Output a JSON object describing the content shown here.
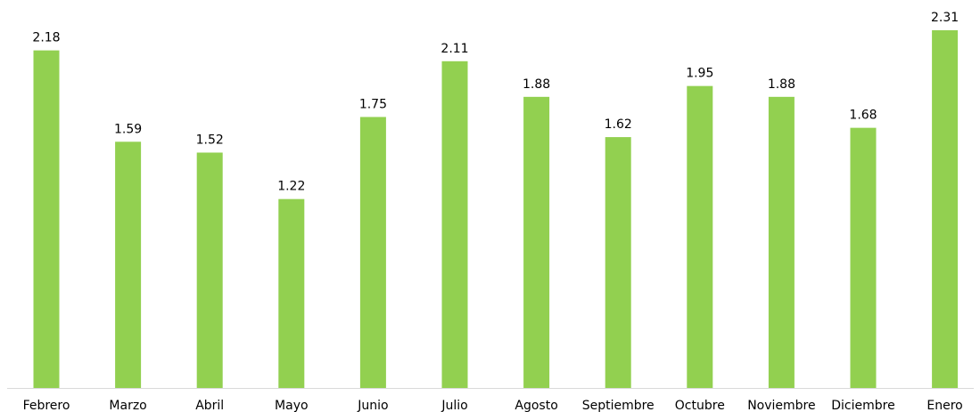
{
  "chart_data": {
    "type": "bar",
    "categories": [
      "Febrero",
      "Marzo",
      "Abril",
      "Mayo",
      "Junio",
      "Julio",
      "Agosto",
      "Septiembre",
      "Octubre",
      "Noviembre",
      "Diciembre",
      "Enero"
    ],
    "values": [
      2.18,
      1.59,
      1.52,
      1.22,
      1.75,
      2.11,
      1.88,
      1.62,
      1.95,
      1.88,
      1.68,
      2.31
    ],
    "color": "#92d050"
  }
}
